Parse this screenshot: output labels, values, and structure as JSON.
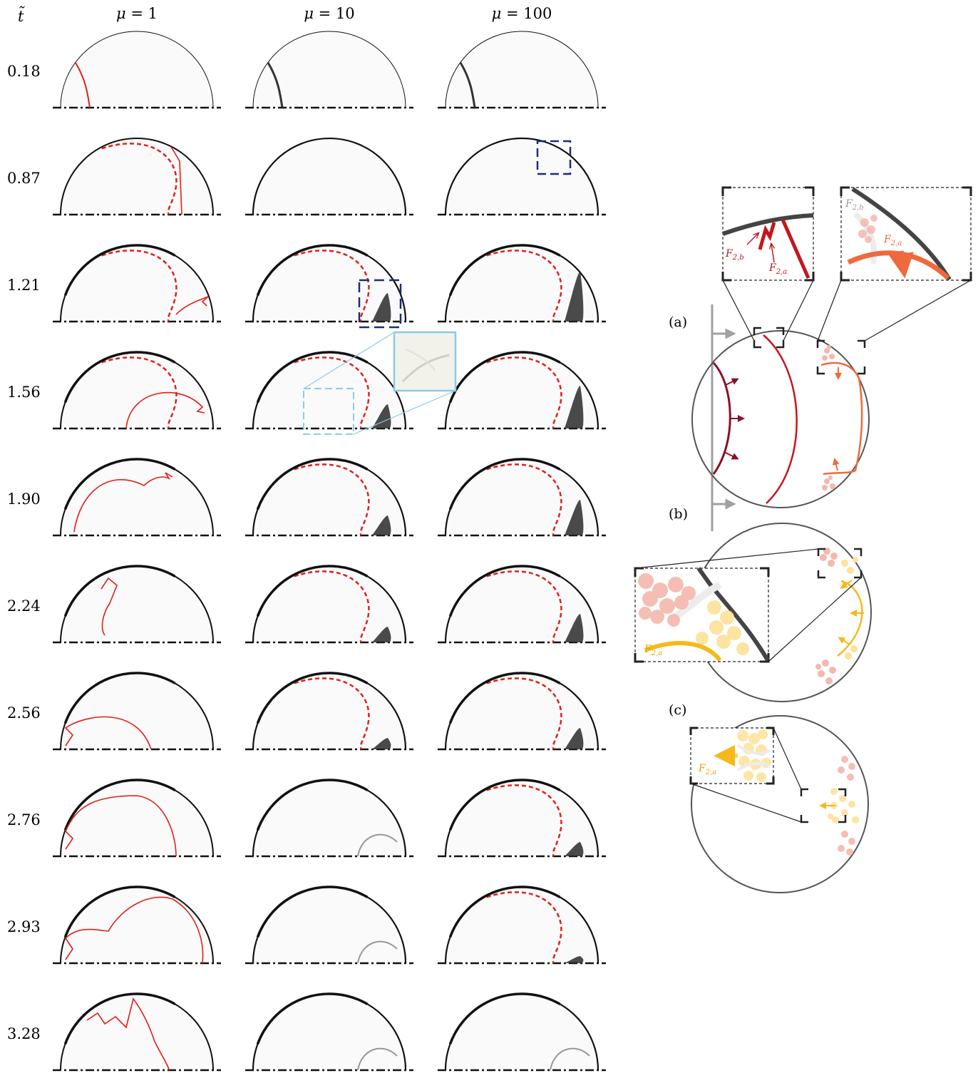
{
  "figure": {
    "time_symbol": "t̃",
    "columns": [
      {
        "mu_symbol": "μ",
        "equals": " = ",
        "value": "1"
      },
      {
        "mu_symbol": "μ",
        "equals": " = ",
        "value": "10"
      },
      {
        "mu_symbol": "μ",
        "equals": " = ",
        "value": "100"
      }
    ],
    "rows": [
      "0.18",
      "0.87",
      "1.21",
      "1.56",
      "1.90",
      "2.24",
      "2.56",
      "2.76",
      "2.93",
      "3.28"
    ],
    "panel_labels": [
      "(a)",
      "(b)",
      "(c)"
    ],
    "annotations": {
      "f2b": {
        "main": "F",
        "sub": "2,b"
      },
      "f2a": {
        "main": "F",
        "sub": "2,a"
      }
    },
    "colors": {
      "interface_red": "#e0201a",
      "fan_red": "#c4161c",
      "shock_dark": "#8b1028",
      "orange": "#ee6a3c",
      "yellow": "#f5b91a",
      "pink_blob": "#f4b8ad",
      "yellow_blob": "#fde29a",
      "navy_box": "#1f2a7a",
      "light_blue_box": "#8ccbe6",
      "grey_arrow": "#a0a0a0",
      "outline": "#555555"
    }
  }
}
